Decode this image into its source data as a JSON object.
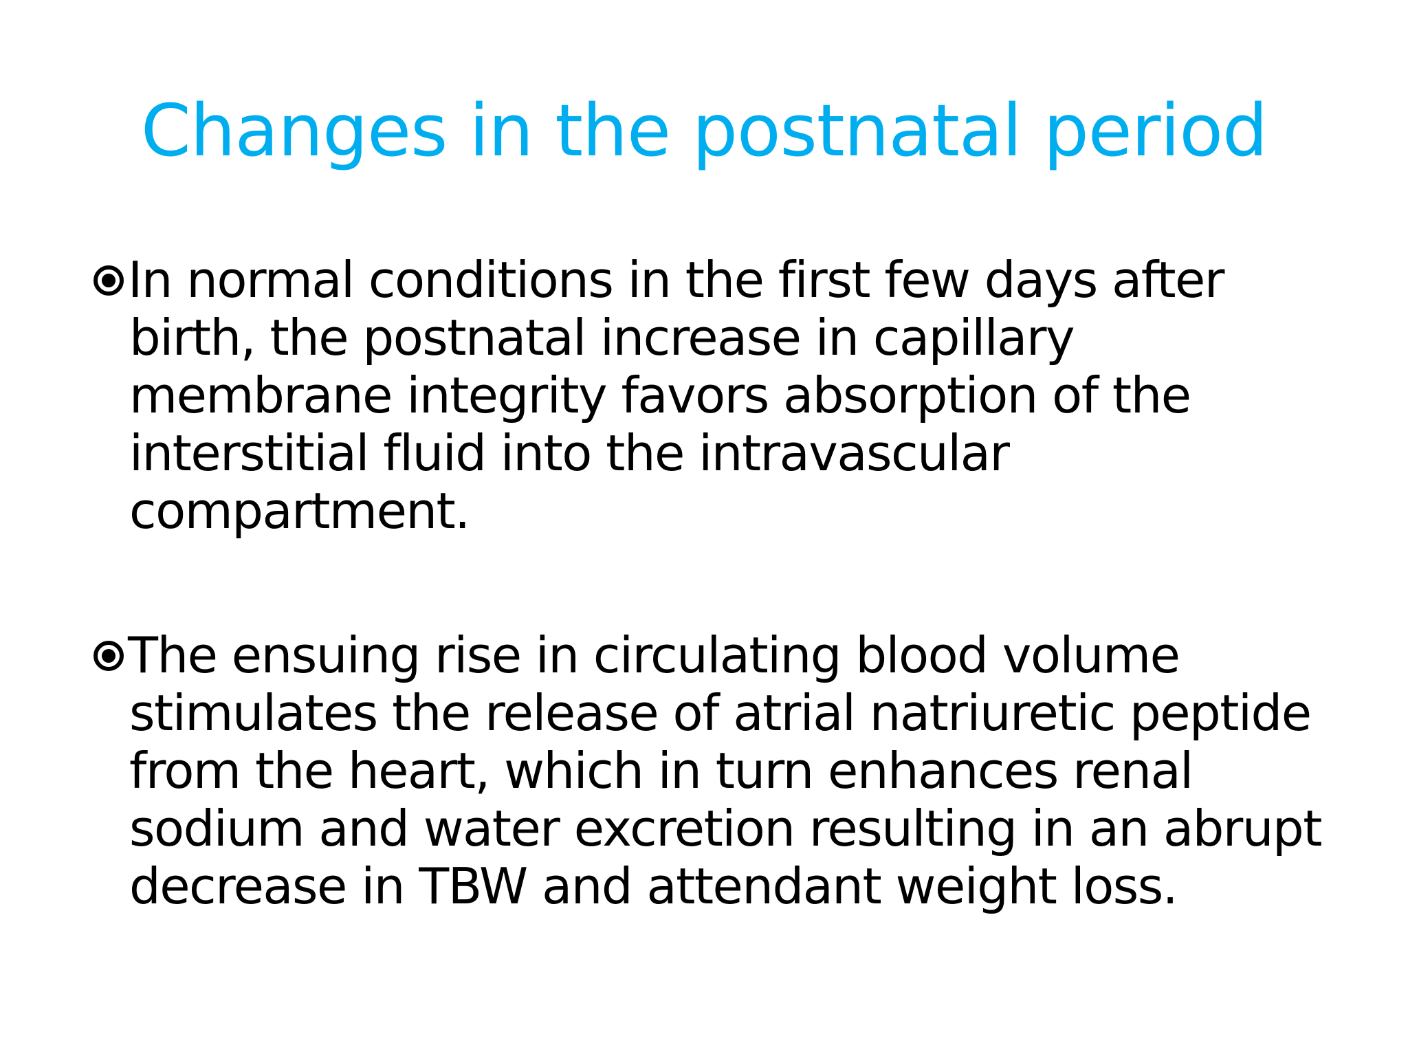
{
  "slide": {
    "title": "Changes in the postnatal period",
    "title_color": "#00AEEF",
    "text_color": "#000000",
    "bullet_icon": "circled-dot-icon",
    "bullets": [
      {
        "text": "In normal conditions in the first few days after birth, the postnatal increase in capillary membrane integrity favors absorption of the interstitial fluid into the intravascular compartment."
      },
      {
        "text": "The ensuing rise in circulating blood volume stimulates the release of atrial natriuretic peptide from the heart, which in turn enhances renal sodium and water excretion resulting in an abrupt decrease in TBW and attendant weight loss."
      }
    ]
  }
}
